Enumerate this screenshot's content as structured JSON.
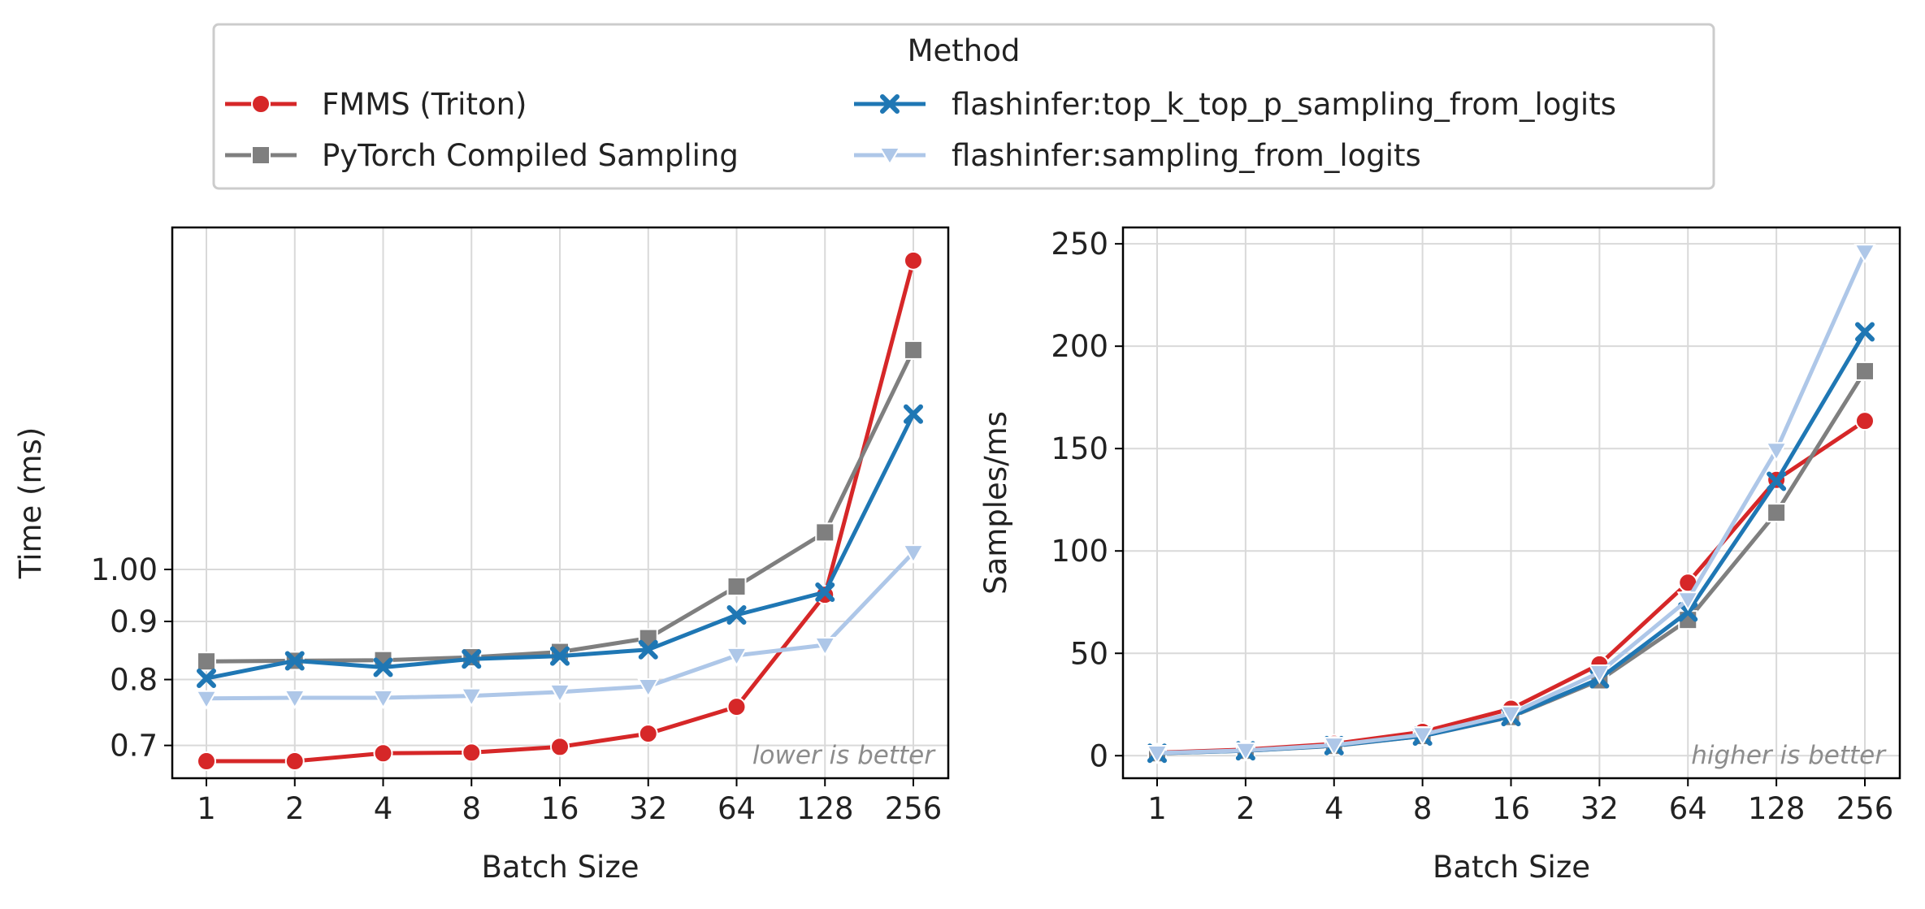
{
  "legend": {
    "title": "Method",
    "entries": [
      {
        "label": "FMMS (Triton)",
        "color": "#d62728",
        "marker": "circle"
      },
      {
        "label": "PyTorch Compiled Sampling",
        "color": "#7f7f7f",
        "marker": "square"
      },
      {
        "label": "flashinfer:top_k_top_p_sampling_from_logits",
        "color": "#1f77b4",
        "marker": "x"
      },
      {
        "label": "flashinfer:sampling_from_logits",
        "color": "#aec7e8",
        "marker": "triangle-down"
      }
    ]
  },
  "chart_data": [
    {
      "type": "line",
      "xlabel": "Batch Size",
      "ylabel": "Time (ms)",
      "yscale": "log",
      "categories": [
        "1",
        "2",
        "4",
        "8",
        "16",
        "32",
        "64",
        "128",
        "256"
      ],
      "yticks": [
        "0.7",
        "0.8",
        "0.9",
        "1.00"
      ],
      "ytick_values": [
        0.7,
        0.8,
        0.9,
        1.0
      ],
      "ylim": [
        0.655,
        2.0
      ],
      "annotation": "lower is better",
      "series": [
        {
          "name": "FMMS (Triton)",
          "values": [
            0.678,
            0.678,
            0.689,
            0.69,
            0.698,
            0.717,
            0.757,
            0.95,
            1.87
          ]
        },
        {
          "name": "PyTorch Compiled Sampling",
          "values": [
            0.83,
            0.831,
            0.832,
            0.837,
            0.846,
            0.87,
            0.966,
            1.078,
            1.56
          ]
        },
        {
          "name": "flashinfer:top_k_top_p_sampling_from_logits",
          "values": [
            0.802,
            0.831,
            0.82,
            0.834,
            0.839,
            0.85,
            0.912,
            0.955,
            1.37
          ]
        },
        {
          "name": "flashinfer:sampling_from_logits",
          "values": [
            0.77,
            0.771,
            0.771,
            0.774,
            0.78,
            0.789,
            0.84,
            0.858,
            1.035
          ]
        }
      ]
    },
    {
      "type": "line",
      "xlabel": "Batch Size",
      "ylabel": "Samples/ms",
      "yscale": "linear",
      "categories": [
        "1",
        "2",
        "4",
        "8",
        "16",
        "32",
        "64",
        "128",
        "256"
      ],
      "yticks": [
        "0",
        "50",
        "100",
        "150",
        "200",
        "250"
      ],
      "ytick_values": [
        0,
        50,
        100,
        150,
        200,
        250
      ],
      "ylim": [
        -11,
        258
      ],
      "annotation": "higher is better",
      "series": [
        {
          "name": "FMMS (Triton)",
          "values": [
            1.5,
            3.0,
            5.8,
            11.6,
            22.9,
            44.6,
            84.5,
            134.7,
            163.5
          ]
        },
        {
          "name": "PyTorch Compiled Sampling",
          "values": [
            1.2,
            2.4,
            4.8,
            9.6,
            18.9,
            36.8,
            66.3,
            118.7,
            187.8
          ]
        },
        {
          "name": "flashinfer:top_k_top_p_sampling_from_logits",
          "values": [
            1.2,
            2.4,
            4.9,
            9.6,
            19.1,
            37.6,
            70.2,
            134.0,
            207.0
          ]
        },
        {
          "name": "flashinfer:sampling_from_logits",
          "values": [
            1.3,
            2.6,
            5.2,
            10.3,
            20.5,
            40.6,
            76.2,
            149.2,
            246.0
          ]
        }
      ]
    }
  ]
}
